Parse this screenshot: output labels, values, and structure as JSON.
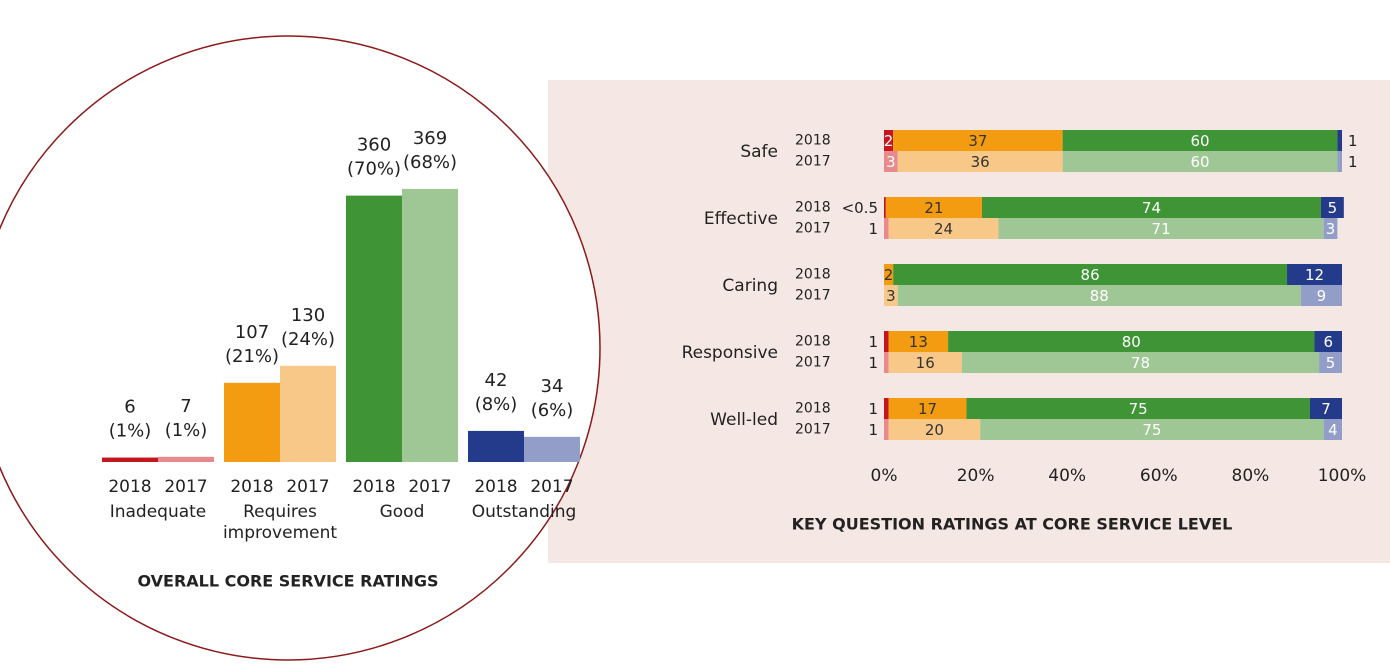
{
  "chart_data": [
    {
      "type": "bar",
      "title": "OVERALL CORE SERVICE RATINGS",
      "categories": [
        "Inadequate",
        "Requires improvement",
        "Good",
        "Outstanding"
      ],
      "series": [
        {
          "name": "2018",
          "colors": [
            "#c4161c",
            "#f39c12",
            "#3f9436",
            "#233b8a"
          ],
          "values": [
            6,
            107,
            360,
            42
          ],
          "value_labels": [
            [
              "6",
              "(1%)"
            ],
            [
              "107",
              "(21%)"
            ],
            [
              "360",
              "(70%)"
            ],
            [
              "42",
              "(8%)"
            ]
          ]
        },
        {
          "name": "2017",
          "colors": [
            "#e88a8c",
            "#f8c888",
            "#9fc796",
            "#929ec8"
          ],
          "values": [
            7,
            130,
            369,
            34
          ],
          "value_labels": [
            [
              "7",
              "(1%)"
            ],
            [
              "130",
              "(24%)"
            ],
            [
              "369",
              "(68%)"
            ],
            [
              "34",
              "(6%)"
            ]
          ]
        }
      ]
    },
    {
      "type": "stacked-hbar",
      "title": "KEY QUESTION RATINGS AT CORE SERVICE LEVEL",
      "categories": [
        "Safe",
        "Effective",
        "Caring",
        "Responsive",
        "Well-led"
      ],
      "series": [
        {
          "name": "2018",
          "colors": [
            "#c4161c",
            "#f39c12",
            "#3f9436",
            "#233b8a"
          ],
          "values": [
            [
              2,
              37,
              60,
              1
            ],
            [
              0.4,
              21,
              74,
              5
            ],
            [
              null,
              2,
              86,
              12
            ],
            [
              1,
              13,
              80,
              6
            ],
            [
              1,
              17,
              75,
              7
            ]
          ],
          "value_labels": [
            [
              "2",
              "37",
              "60",
              "1"
            ],
            [
              "<0.5",
              "21",
              "74",
              "5"
            ],
            [
              null,
              "2",
              "86",
              "12"
            ],
            [
              "1",
              "13",
              "80",
              "6"
            ],
            [
              "1",
              "17",
              "75",
              "7"
            ]
          ]
        },
        {
          "name": "2017",
          "colors": [
            "#e88a8c",
            "#f8c888",
            "#9fc796",
            "#929ec8"
          ],
          "values": [
            [
              3,
              36,
              60,
              1
            ],
            [
              1,
              24,
              71,
              3
            ],
            [
              null,
              3,
              88,
              9
            ],
            [
              1,
              16,
              78,
              5
            ],
            [
              1,
              20,
              75,
              4
            ]
          ],
          "value_labels": [
            [
              "3",
              "36",
              "60",
              "1"
            ],
            [
              "1",
              "24",
              "71",
              "3"
            ],
            [
              null,
              "3",
              "88",
              "9"
            ],
            [
              "1",
              "16",
              "78",
              "5"
            ],
            [
              "1",
              "20",
              "75",
              "4"
            ]
          ]
        }
      ],
      "xlim": [
        0,
        100
      ],
      "xticks": [
        {
          "value": 0,
          "label": "0%"
        },
        {
          "value": 20,
          "label": "20%"
        },
        {
          "value": 40,
          "label": "40%"
        },
        {
          "value": 60,
          "label": "60%"
        },
        {
          "value": 80,
          "label": "80%"
        },
        {
          "value": 100,
          "label": "100%"
        }
      ]
    }
  ]
}
